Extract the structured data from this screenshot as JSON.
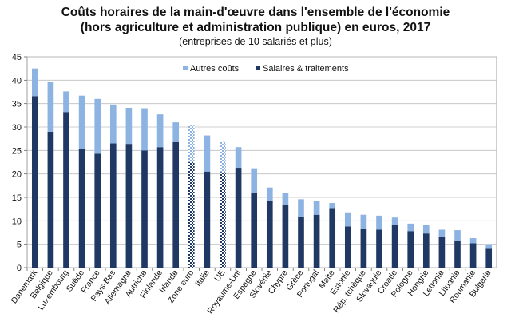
{
  "title": {
    "line1": "Coûts horaires de la main-d'œuvre dans l'ensemble de l'économie",
    "line2": "(hors agriculture et administration publique) en euros, 2017",
    "line3": "(entreprises de 10 salariés et plus)"
  },
  "colors": {
    "salaires": "#1f3864",
    "autres": "#8db3e2",
    "aggregate_check": "#ffffff",
    "grid": "#bfbfbf"
  },
  "chart_data": {
    "type": "bar",
    "stacked": true,
    "title": "Coûts horaires de la main-d'œuvre dans l'ensemble de l'économie (hors agriculture et administration publique) en euros, 2017",
    "ylim": [
      0,
      45
    ],
    "yticks": [
      0,
      5,
      10,
      15,
      20,
      25,
      30,
      35,
      40,
      45
    ],
    "grid": true,
    "legend_position": "top-center",
    "categories": [
      "Danemark",
      "Belgique",
      "Luxembourg",
      "Suède",
      "France",
      "Pays-Bas",
      "Allemagne",
      "Autriche",
      "Finlande",
      "Irlande",
      "Zone euro",
      "Italie",
      "UE",
      "Royaume-Uni",
      "Espagne",
      "Slovénie",
      "Chypre",
      "Grèce",
      "Portugal",
      "Malte",
      "Estonie",
      "Rép. tchèque",
      "Slovaquie",
      "Croatie",
      "Pologne",
      "Hongrie",
      "Lettonie",
      "Lituanie",
      "Roumanie",
      "Bulgarie"
    ],
    "aggregates": [
      "Zone euro",
      "UE"
    ],
    "series": [
      {
        "name": "Salaires & traitements",
        "values": [
          36.6,
          29.0,
          33.2,
          25.3,
          24.3,
          26.5,
          26.4,
          25.0,
          25.7,
          26.8,
          22.5,
          20.5,
          20.4,
          21.3,
          16.0,
          14.2,
          13.4,
          10.9,
          11.3,
          12.7,
          8.8,
          8.3,
          8.1,
          9.1,
          7.8,
          7.3,
          6.5,
          5.8,
          5.2,
          4.2
        ]
      },
      {
        "name": "Autres coûts",
        "values": [
          5.9,
          10.7,
          4.4,
          11.4,
          11.7,
          8.3,
          7.7,
          9.0,
          7.0,
          4.2,
          7.8,
          7.7,
          6.4,
          4.4,
          5.2,
          2.9,
          2.6,
          3.7,
          2.9,
          1.1,
          3.0,
          3.0,
          3.0,
          1.6,
          1.6,
          1.9,
          1.6,
          2.2,
          1.1,
          0.8
        ]
      }
    ],
    "legend": [
      "Autres coûts",
      "Salaires & traitements"
    ]
  }
}
